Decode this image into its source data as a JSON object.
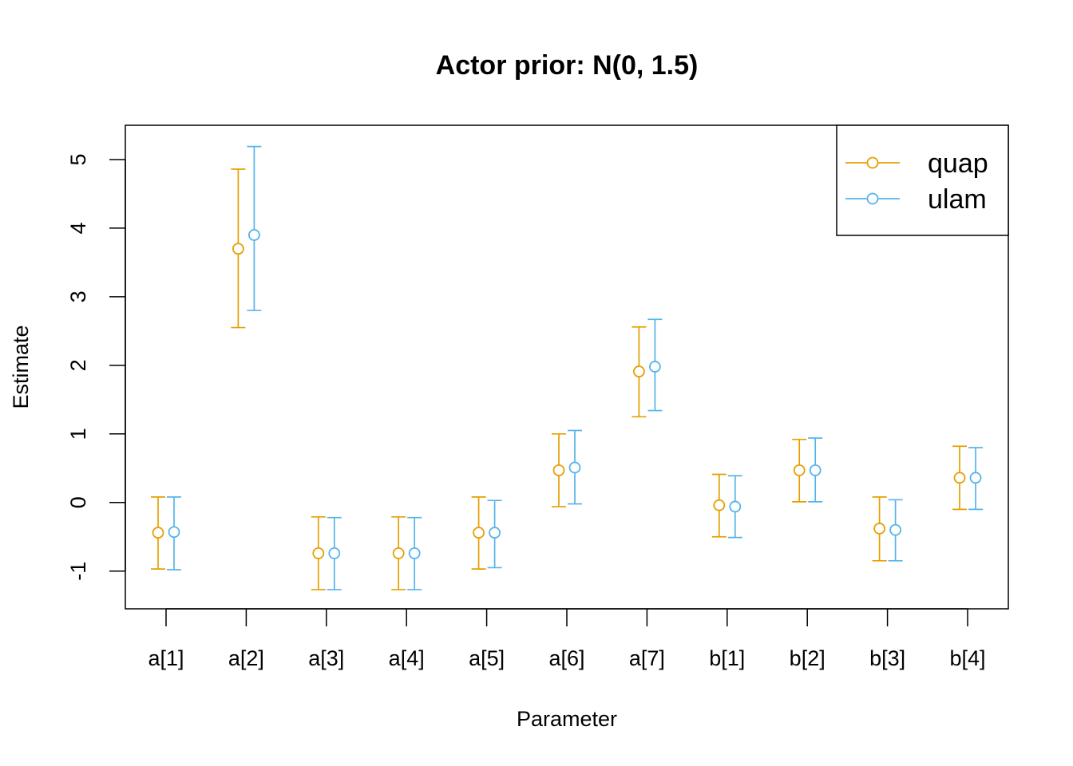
{
  "chart_data": {
    "type": "scatter",
    "title": "Actor prior: N(0, 1.5)",
    "xlabel": "Parameter",
    "ylabel": "Estimate",
    "categories": [
      "a[1]",
      "a[2]",
      "a[3]",
      "a[4]",
      "a[5]",
      "a[6]",
      "a[7]",
      "b[1]",
      "b[2]",
      "b[3]",
      "b[4]"
    ],
    "ylim": [
      -1.55,
      5.5
    ],
    "yticks": [
      -1,
      0,
      1,
      2,
      3,
      4,
      5
    ],
    "ytick_labels": [
      "-1",
      "0",
      "1",
      "2",
      "3",
      "4",
      "5"
    ],
    "error_bars": true,
    "grid": false,
    "legend_position": "top-right",
    "series": [
      {
        "name": "quap",
        "color": "#E69F00",
        "values": [
          -0.44,
          3.7,
          -0.74,
          -0.74,
          -0.44,
          0.47,
          1.91,
          -0.04,
          0.47,
          -0.38,
          0.36
        ],
        "lower": [
          -0.97,
          2.55,
          -1.27,
          -1.27,
          -0.97,
          -0.06,
          1.25,
          -0.5,
          0.01,
          -0.85,
          -0.1
        ],
        "upper": [
          0.08,
          4.86,
          -0.21,
          -0.21,
          0.08,
          1.0,
          2.56,
          0.41,
          0.92,
          0.08,
          0.82
        ]
      },
      {
        "name": "ulam",
        "color": "#56B4E9",
        "values": [
          -0.43,
          3.9,
          -0.74,
          -0.74,
          -0.44,
          0.51,
          1.98,
          -0.06,
          0.47,
          -0.4,
          0.36
        ],
        "lower": [
          -0.98,
          2.8,
          -1.27,
          -1.27,
          -0.95,
          -0.02,
          1.34,
          -0.51,
          0.01,
          -0.85,
          -0.1
        ],
        "upper": [
          0.08,
          5.19,
          -0.22,
          -0.22,
          0.03,
          1.05,
          2.67,
          0.39,
          0.94,
          0.04,
          0.8
        ]
      }
    ]
  }
}
